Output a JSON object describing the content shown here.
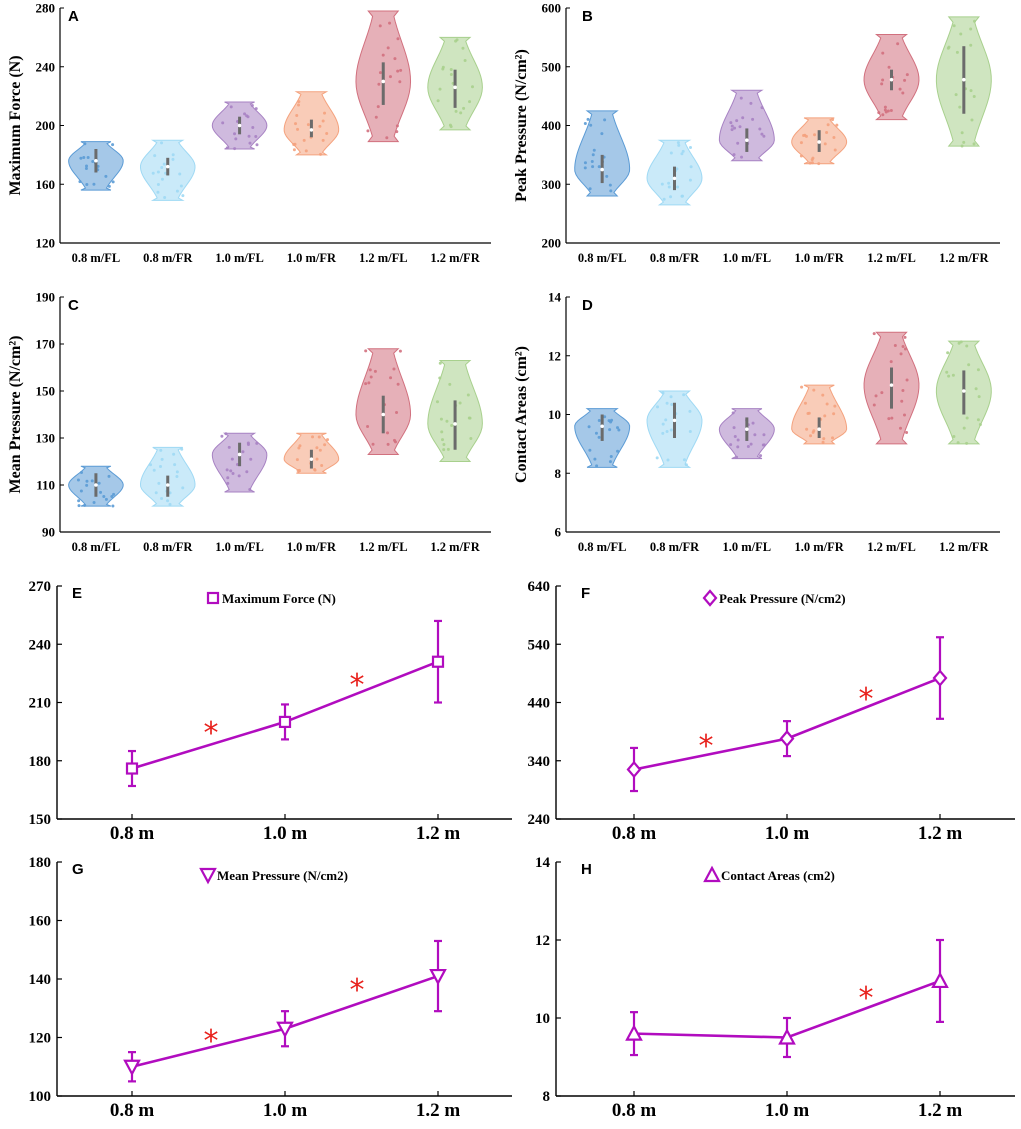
{
  "chart_data": [
    {
      "panel": "A",
      "type": "violin",
      "ylabel": "Maximum Force (N)",
      "ylim": [
        120,
        280
      ],
      "yticks": [
        120,
        160,
        200,
        240,
        280
      ],
      "categories": [
        "0.8 m/FL",
        "0.8 m/FR",
        "1.0 m/FL",
        "1.0 m/FR",
        "1.2 m/FL",
        "1.2 m/FR"
      ],
      "groups": [
        {
          "min": 156,
          "max": 189,
          "median": 176,
          "q1": 168,
          "q3": 184
        },
        {
          "min": 149,
          "max": 190,
          "median": 172,
          "q1": 166,
          "q3": 178
        },
        {
          "min": 184,
          "max": 216,
          "median": 200,
          "q1": 194,
          "q3": 206
        },
        {
          "min": 180,
          "max": 223,
          "median": 197,
          "q1": 192,
          "q3": 204
        },
        {
          "min": 189,
          "max": 278,
          "median": 230,
          "q1": 214,
          "q3": 243
        },
        {
          "min": 197,
          "max": 260,
          "median": 226,
          "q1": 212,
          "q3": 238
        }
      ]
    },
    {
      "panel": "B",
      "type": "violin",
      "ylabel": "Peak Pressure (N/cm²)",
      "ylim": [
        200,
        600
      ],
      "yticks": [
        200,
        300,
        400,
        500,
        600
      ],
      "categories": [
        "0.8 m/FL",
        "0.8 m/FR",
        "1.0 m/FL",
        "1.0 m/FR",
        "1.2 m/FL",
        "1.2 m/FR"
      ],
      "groups": [
        {
          "min": 280,
          "max": 425,
          "median": 325,
          "q1": 302,
          "q3": 350
        },
        {
          "min": 265,
          "max": 375,
          "median": 310,
          "q1": 290,
          "q3": 330
        },
        {
          "min": 340,
          "max": 460,
          "median": 375,
          "q1": 355,
          "q3": 395
        },
        {
          "min": 335,
          "max": 413,
          "median": 372,
          "q1": 355,
          "q3": 392
        },
        {
          "min": 410,
          "max": 555,
          "median": 478,
          "q1": 460,
          "q3": 495
        },
        {
          "min": 365,
          "max": 585,
          "median": 478,
          "q1": 420,
          "q3": 535
        }
      ]
    },
    {
      "panel": "C",
      "type": "violin",
      "ylabel": "Mean Pressure (N/cm²)",
      "ylim": [
        90,
        190
      ],
      "yticks": [
        90,
        110,
        130,
        150,
        170,
        190
      ],
      "categories": [
        "0.8 m/FL",
        "0.8 m/FR",
        "1.0 m/FL",
        "1.0 m/FR",
        "1.2 m/FL",
        "1.2 m/FR"
      ],
      "groups": [
        {
          "min": 101,
          "max": 118,
          "median": 110,
          "q1": 105,
          "q3": 115
        },
        {
          "min": 101,
          "max": 126,
          "median": 110,
          "q1": 105,
          "q3": 114
        },
        {
          "min": 107,
          "max": 132,
          "median": 123,
          "q1": 118,
          "q3": 128
        },
        {
          "min": 115,
          "max": 132,
          "median": 121,
          "q1": 117,
          "q3": 125
        },
        {
          "min": 123,
          "max": 168,
          "median": 140,
          "q1": 132,
          "q3": 148
        },
        {
          "min": 120,
          "max": 163,
          "median": 136,
          "q1": 125,
          "q3": 146
        }
      ]
    },
    {
      "panel": "D",
      "type": "violin",
      "ylabel": "Contact Areas (cm²)",
      "ylim": [
        6,
        14
      ],
      "yticks": [
        6,
        8,
        10,
        12,
        14
      ],
      "categories": [
        "0.8 m/FL",
        "0.8 m/FR",
        "1.0 m/FL",
        "1.0 m/FR",
        "1.2 m/FL",
        "1.2 m/FR"
      ],
      "groups": [
        {
          "min": 8.2,
          "max": 10.2,
          "median": 9.6,
          "q1": 9.1,
          "q3": 10.0
        },
        {
          "min": 8.2,
          "max": 10.8,
          "median": 9.8,
          "q1": 9.2,
          "q3": 10.4
        },
        {
          "min": 8.5,
          "max": 10.2,
          "median": 9.5,
          "q1": 9.1,
          "q3": 9.9
        },
        {
          "min": 9.0,
          "max": 11.0,
          "median": 9.5,
          "q1": 9.2,
          "q3": 9.9
        },
        {
          "min": 9.0,
          "max": 12.8,
          "median": 11.0,
          "q1": 10.2,
          "q3": 11.6
        },
        {
          "min": 9.0,
          "max": 12.5,
          "median": 10.8,
          "q1": 10.0,
          "q3": 11.5
        }
      ]
    },
    {
      "panel": "E",
      "type": "line",
      "legend": "Maximum Force (N)",
      "marker": "square",
      "x": [
        "0.8 m",
        "1.0 m",
        "1.2 m"
      ],
      "ylim": [
        150,
        270
      ],
      "yticks": [
        150,
        180,
        210,
        240,
        270
      ],
      "values": [
        176,
        200,
        231
      ],
      "errors": [
        9,
        9,
        21
      ],
      "significance": [
        1,
        1
      ]
    },
    {
      "panel": "F",
      "type": "line",
      "legend": "Peak Pressure (N/cm2)",
      "marker": "diamond",
      "x": [
        "0.8 m",
        "1.0 m",
        "1.2 m"
      ],
      "ylim": [
        240,
        640
      ],
      "yticks": [
        240,
        340,
        440,
        540,
        640
      ],
      "values": [
        325,
        378,
        482
      ],
      "errors": [
        37,
        30,
        70
      ],
      "significance": [
        1,
        1
      ]
    },
    {
      "panel": "G",
      "type": "line",
      "legend": "Mean Pressure (N/cm2)",
      "marker": "triangle-down",
      "x": [
        "0.8 m",
        "1.0 m",
        "1.2 m"
      ],
      "ylim": [
        100,
        180
      ],
      "yticks": [
        100,
        120,
        140,
        160,
        180
      ],
      "values": [
        110,
        123,
        141
      ],
      "errors": [
        5,
        6,
        12
      ],
      "significance": [
        1,
        1
      ]
    },
    {
      "panel": "H",
      "type": "line",
      "legend": "Contact Areas (cm2)",
      "marker": "triangle-up",
      "x": [
        "0.8 m",
        "1.0 m",
        "1.2 m"
      ],
      "ylim": [
        8,
        14
      ],
      "yticks": [
        8,
        10,
        12,
        14
      ],
      "values": [
        9.6,
        9.5,
        10.95
      ],
      "errors": [
        0.55,
        0.5,
        1.05
      ],
      "significance": [
        0,
        1
      ]
    }
  ],
  "colors": {
    "violins": [
      "#5b9bd5",
      "#9fd9f4",
      "#a782c3",
      "#f4a27e",
      "#d1707e",
      "#a8d08d"
    ],
    "line": "#b10cbf",
    "star": "#e8211c"
  },
  "star_symbol": "*"
}
